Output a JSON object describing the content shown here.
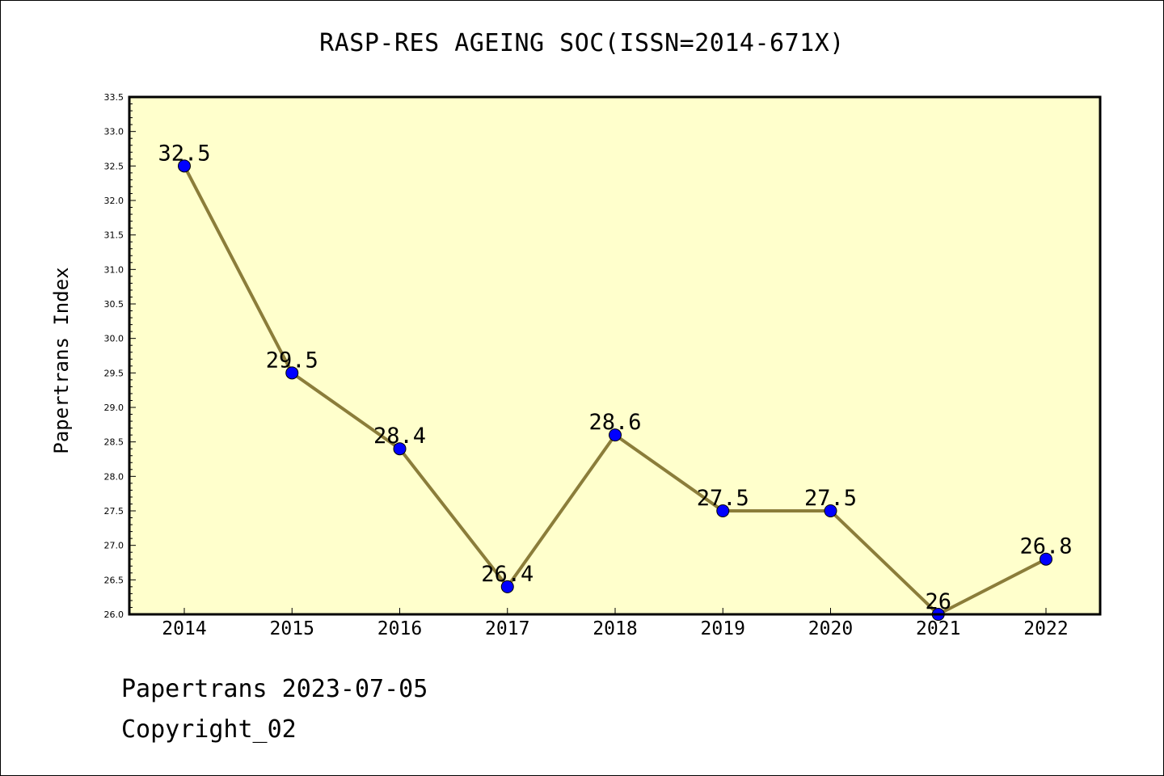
{
  "chart_data": {
    "type": "line",
    "title": "RASP-RES AGEING SOC(ISSN=2014-671X)",
    "xlabel": "",
    "ylabel": "Papertrans Index",
    "categories": [
      "2014",
      "2015",
      "2016",
      "2017",
      "2018",
      "2019",
      "2020",
      "2021",
      "2022"
    ],
    "values": [
      32.5,
      29.5,
      28.4,
      26.4,
      28.6,
      27.5,
      27.5,
      26,
      26.8
    ],
    "data_labels": [
      "32.5",
      "29.5",
      "28.4",
      "26.4",
      "28.6",
      "27.5",
      "27.5",
      "26",
      "26.8"
    ],
    "ylim": [
      26.0,
      33.5
    ],
    "yticks": [
      "26.0",
      "26.5",
      "27.0",
      "27.5",
      "28.0",
      "28.5",
      "29.0",
      "29.5",
      "30.0",
      "30.5",
      "31.0",
      "31.5",
      "32.0",
      "32.5",
      "33.0",
      "33.5"
    ],
    "grid": false,
    "colors": {
      "plot_background": "#ffffcc",
      "line": "#8b7d3a",
      "marker": "#0000ff"
    }
  },
  "footer": {
    "date_text": "Papertrans 2023-07-05",
    "copyright_text": "Copyright_02"
  }
}
